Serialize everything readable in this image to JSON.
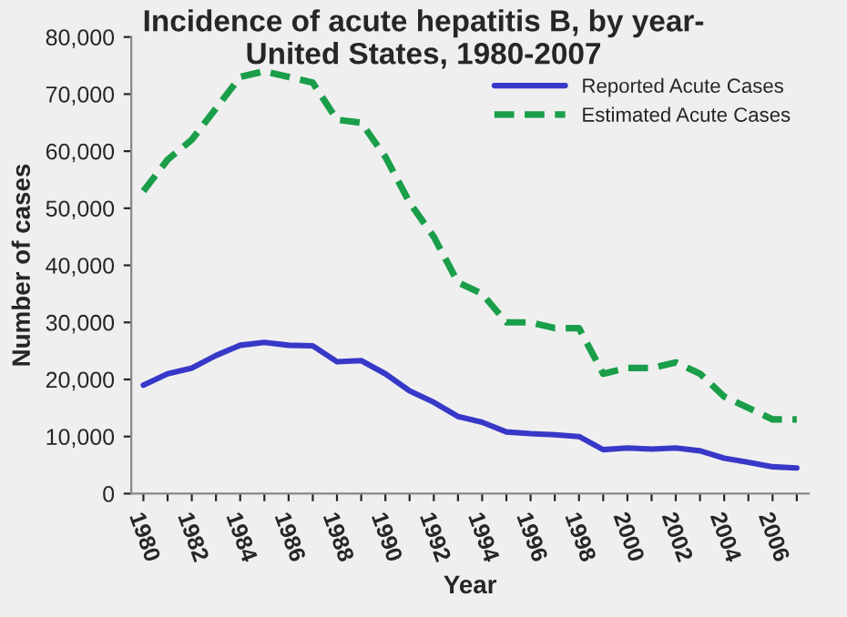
{
  "chart_data": {
    "type": "line",
    "title": "Incidence of acute hepatitis B, by year-\nUnited States, 1980-2007",
    "xlabel": "Year",
    "ylabel": "Number of cases",
    "categories": [
      "1980",
      null,
      "1982",
      null,
      "1984",
      null,
      "1986",
      null,
      "1988",
      null,
      "1990",
      null,
      "1992",
      null,
      "1994",
      null,
      "1996",
      null,
      "1998",
      null,
      "2000",
      null,
      "2002",
      null,
      "2004",
      null,
      "2006",
      null
    ],
    "series": [
      {
        "name": "Reported Acute Cases",
        "color": "#3838c8",
        "line_style": "solid",
        "values": [
          19000,
          21000,
          22000,
          24200,
          26000,
          26500,
          26000,
          25900,
          23100,
          23300,
          21000,
          18000,
          16000,
          13500,
          12500,
          10800,
          10500,
          10300,
          10000,
          7700,
          8000,
          7800,
          8000,
          7500,
          6200,
          5500,
          4700,
          4500
        ]
      },
      {
        "name": "Estimated Acute Cases",
        "color": "#1a9e4a",
        "line_style": "dashed",
        "values": [
          53000,
          58500,
          62000,
          67500,
          73000,
          74000,
          73000,
          72000,
          65500,
          65000,
          59000,
          51000,
          45000,
          37000,
          35000,
          30000,
          30000,
          29000,
          29000,
          21000,
          22000,
          22000,
          23000,
          21000,
          17000,
          15000,
          13000,
          13000
        ]
      }
    ],
    "ylim": [
      0,
      80000
    ],
    "yticks": [
      {
        "value": 0,
        "label": "0"
      },
      {
        "value": 10000,
        "label": "10,000"
      },
      {
        "value": 20000,
        "label": "20,000"
      },
      {
        "value": 30000,
        "label": "30,000"
      },
      {
        "value": 40000,
        "label": "40,000"
      },
      {
        "value": 50000,
        "label": "50,000"
      },
      {
        "value": 60000,
        "label": "60,000"
      },
      {
        "value": 70000,
        "label": "70,000"
      },
      {
        "value": 80000,
        "label": "80,000"
      }
    ],
    "grid": false,
    "legend": "top right",
    "marker": "none"
  }
}
